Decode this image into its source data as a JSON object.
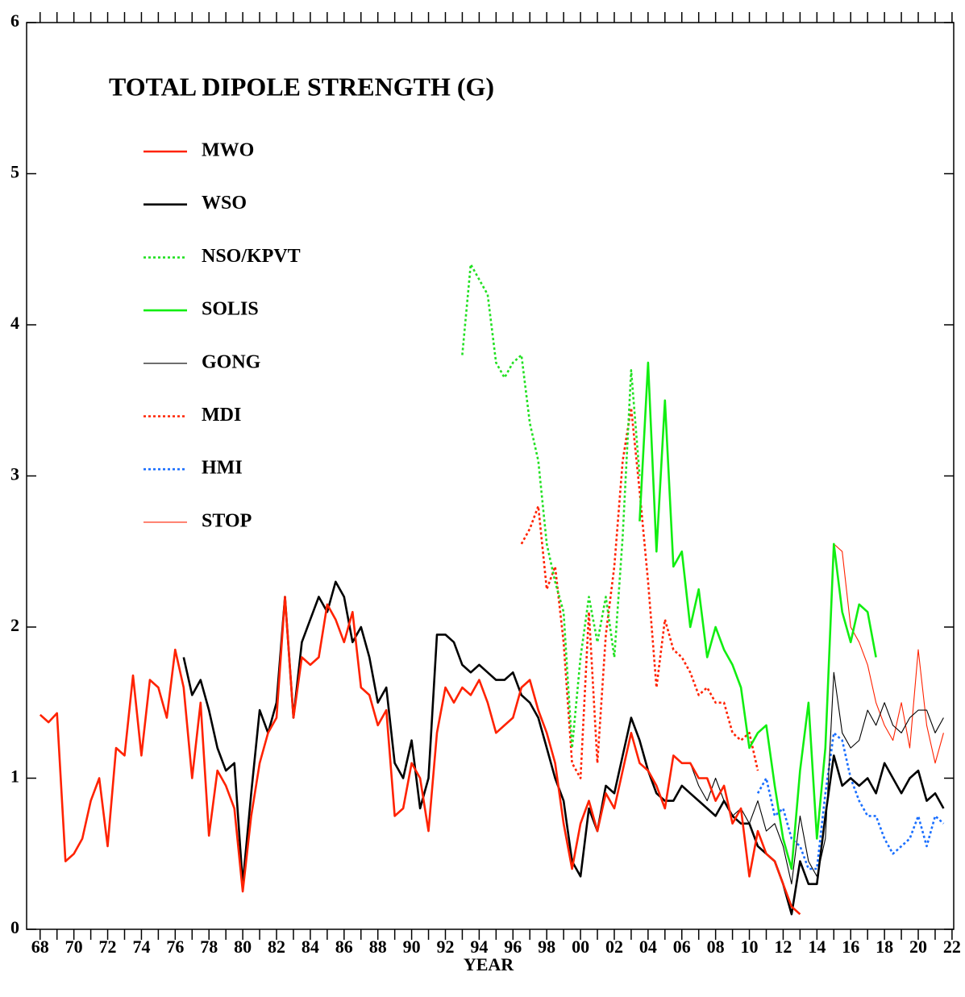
{
  "chart_data": {
    "type": "line",
    "title": "TOTAL DIPOLE STRENGTH (G)",
    "x_label": "YEAR",
    "legend": "upper left",
    "grid": false,
    "xlim": [
      1967.2,
      2022.1
    ],
    "ylim": [
      0,
      6
    ],
    "yticks": [
      0,
      1,
      2,
      3,
      4,
      5,
      6
    ],
    "xticks": [
      {
        "value": 1968,
        "label": "68"
      },
      {
        "value": 1970,
        "label": "70"
      },
      {
        "value": 1972,
        "label": "72"
      },
      {
        "value": 1974,
        "label": "74"
      },
      {
        "value": 1976,
        "label": "76"
      },
      {
        "value": 1978,
        "label": "78"
      },
      {
        "value": 1980,
        "label": "80"
      },
      {
        "value": 1982,
        "label": "82"
      },
      {
        "value": 1984,
        "label": "84"
      },
      {
        "value": 1986,
        "label": "86"
      },
      {
        "value": 1988,
        "label": "88"
      },
      {
        "value": 1990,
        "label": "90"
      },
      {
        "value": 1992,
        "label": "92"
      },
      {
        "value": 1994,
        "label": "94"
      },
      {
        "value": 1996,
        "label": "96"
      },
      {
        "value": 1998,
        "label": "98"
      },
      {
        "value": 2000,
        "label": "00"
      },
      {
        "value": 2002,
        "label": "02"
      },
      {
        "value": 2004,
        "label": "04"
      },
      {
        "value": 2006,
        "label": "06"
      },
      {
        "value": 2008,
        "label": "08"
      },
      {
        "value": 2010,
        "label": "10"
      },
      {
        "value": 2012,
        "label": "12"
      },
      {
        "value": 2014,
        "label": "14"
      },
      {
        "value": 2016,
        "label": "16"
      },
      {
        "value": 2018,
        "label": "18"
      },
      {
        "value": 2020,
        "label": "20"
      },
      {
        "value": 2022,
        "label": "22"
      }
    ],
    "xminor_ticks": [
      1969,
      1971,
      1973,
      1975,
      1977,
      1979,
      1981,
      1983,
      1985,
      1987,
      1989,
      1991,
      1993,
      1995,
      1997,
      1999,
      2001,
      2003,
      2005,
      2007,
      2009,
      2011,
      2013,
      2015,
      2017,
      2019,
      2021
    ],
    "x": [
      1968,
      1968.5,
      1969,
      1969.5,
      1970,
      1970.5,
      1971,
      1971.5,
      1972,
      1972.5,
      1973,
      1973.5,
      1974,
      1974.5,
      1975,
      1975.5,
      1976,
      1976.5,
      1977,
      1977.5,
      1978,
      1978.5,
      1979,
      1979.5,
      1980,
      1980.5,
      1981,
      1981.5,
      1982,
      1982.5,
      1983,
      1983.5,
      1984,
      1984.5,
      1985,
      1985.5,
      1986,
      1986.5,
      1987,
      1987.5,
      1988,
      1988.5,
      1989,
      1989.5,
      1990,
      1990.5,
      1991,
      1991.5,
      1992,
      1992.5,
      1993,
      1993.5,
      1994,
      1994.5,
      1995,
      1995.5,
      1996,
      1996.5,
      1997,
      1997.5,
      1998,
      1998.5,
      1999,
      1999.5,
      2000,
      2000.5,
      2001,
      2001.5,
      2002,
      2002.5,
      2003,
      2003.5,
      2004,
      2004.5,
      2005,
      2005.5,
      2006,
      2006.5,
      2007,
      2007.5,
      2008,
      2008.5,
      2009,
      2009.5,
      2010,
      2010.5,
      2011,
      2011.5,
      2012,
      2012.5,
      2013,
      2013.5,
      2014,
      2014.5,
      2015,
      2015.5,
      2016,
      2016.5,
      2017,
      2017.5,
      2018,
      2018.5,
      2019,
      2019.5,
      2020,
      2020.5,
      2021,
      2021.5
    ],
    "series": [
      {
        "name": "MWO",
        "color": "#ff2200",
        "style": "solid",
        "weight": "thick",
        "values": [
          1.42,
          1.37,
          1.43,
          0.45,
          0.5,
          0.6,
          0.85,
          1.0,
          0.55,
          1.2,
          1.15,
          1.68,
          1.15,
          1.65,
          1.6,
          1.4,
          1.85,
          1.6,
          1.0,
          1.5,
          0.62,
          1.05,
          0.95,
          0.8,
          0.25,
          0.75,
          1.1,
          1.3,
          1.4,
          2.2,
          1.4,
          1.8,
          1.75,
          1.8,
          2.15,
          2.05,
          1.9,
          2.1,
          1.6,
          1.55,
          1.35,
          1.45,
          0.75,
          0.8,
          1.1,
          1.0,
          0.65,
          1.3,
          1.6,
          1.5,
          1.6,
          1.55,
          1.65,
          1.5,
          1.3,
          1.35,
          1.4,
          1.6,
          1.65,
          1.45,
          1.3,
          1.1,
          0.7,
          0.4,
          0.7,
          0.85,
          0.65,
          0.9,
          0.8,
          1.05,
          1.3,
          1.1,
          1.05,
          0.95,
          0.8,
          1.15,
          1.1,
          1.1,
          1.0,
          1.0,
          0.85,
          0.95,
          0.7,
          0.8,
          0.35,
          0.65,
          0.5,
          0.45,
          0.3,
          0.15,
          0.1,
          null,
          null,
          null,
          null,
          null,
          null,
          null,
          null,
          null,
          null,
          null,
          null,
          null,
          null,
          null,
          null,
          null
        ]
      },
      {
        "name": "WSO",
        "color": "#000000",
        "style": "solid",
        "weight": "thick",
        "values": [
          null,
          null,
          null,
          null,
          null,
          null,
          null,
          null,
          null,
          null,
          null,
          null,
          null,
          null,
          null,
          null,
          null,
          1.8,
          1.55,
          1.65,
          1.45,
          1.2,
          1.05,
          1.1,
          0.3,
          0.9,
          1.45,
          1.3,
          1.5,
          2.2,
          1.4,
          1.9,
          2.05,
          2.2,
          2.1,
          2.3,
          2.2,
          1.9,
          2.0,
          1.8,
          1.5,
          1.6,
          1.1,
          1.0,
          1.25,
          0.8,
          1.0,
          1.95,
          1.95,
          1.9,
          1.75,
          1.7,
          1.75,
          1.7,
          1.65,
          1.65,
          1.7,
          1.55,
          1.5,
          1.4,
          1.2,
          1.0,
          0.85,
          0.45,
          0.35,
          0.8,
          0.65,
          0.95,
          0.9,
          1.15,
          1.4,
          1.25,
          1.05,
          0.9,
          0.85,
          0.85,
          0.95,
          0.9,
          0.85,
          0.8,
          0.75,
          0.85,
          0.75,
          0.7,
          0.7,
          0.55,
          0.5,
          0.45,
          0.3,
          0.1,
          0.45,
          0.3,
          0.3,
          0.75,
          1.15,
          0.95,
          1.0,
          0.95,
          1.0,
          0.9,
          1.1,
          1.0,
          0.9,
          1.0,
          1.05,
          0.85,
          0.9,
          0.8
        ]
      },
      {
        "name": "NSO/KPVT",
        "color": "#22e022",
        "style": "dotted",
        "weight": "thick",
        "values": [
          null,
          null,
          null,
          null,
          null,
          null,
          null,
          null,
          null,
          null,
          null,
          null,
          null,
          null,
          null,
          null,
          null,
          null,
          null,
          null,
          null,
          null,
          null,
          null,
          null,
          null,
          null,
          null,
          null,
          null,
          null,
          null,
          null,
          null,
          null,
          null,
          null,
          null,
          null,
          null,
          null,
          null,
          null,
          null,
          null,
          null,
          null,
          null,
          null,
          null,
          3.8,
          4.4,
          4.3,
          4.2,
          3.75,
          3.65,
          3.75,
          3.8,
          3.35,
          3.1,
          2.55,
          2.3,
          2.1,
          1.2,
          1.8,
          2.2,
          1.9,
          2.2,
          1.8,
          2.6,
          3.7,
          3.0,
          null,
          null,
          null,
          null,
          null,
          null,
          null,
          null,
          null,
          null,
          null,
          null,
          null,
          null,
          null,
          null,
          null,
          null,
          null,
          null,
          null,
          null,
          null,
          null,
          null,
          null,
          null,
          null,
          null,
          null,
          null,
          null,
          null,
          null,
          null,
          null
        ]
      },
      {
        "name": "SOLIS",
        "color": "#11ee11",
        "style": "solid",
        "weight": "thick",
        "values": [
          null,
          null,
          null,
          null,
          null,
          null,
          null,
          null,
          null,
          null,
          null,
          null,
          null,
          null,
          null,
          null,
          null,
          null,
          null,
          null,
          null,
          null,
          null,
          null,
          null,
          null,
          null,
          null,
          null,
          null,
          null,
          null,
          null,
          null,
          null,
          null,
          null,
          null,
          null,
          null,
          null,
          null,
          null,
          null,
          null,
          null,
          null,
          null,
          null,
          null,
          null,
          null,
          null,
          null,
          null,
          null,
          null,
          null,
          null,
          null,
          null,
          null,
          null,
          null,
          null,
          null,
          null,
          null,
          null,
          null,
          null,
          2.7,
          3.75,
          2.5,
          3.5,
          2.4,
          2.5,
          2.0,
          2.25,
          1.8,
          2.0,
          1.85,
          1.75,
          1.6,
          1.2,
          1.3,
          1.35,
          0.95,
          0.6,
          0.4,
          1.05,
          1.5,
          0.6,
          1.2,
          2.55,
          2.1,
          1.9,
          2.15,
          2.1,
          1.8,
          null,
          null,
          null,
          null,
          null,
          null,
          null,
          null
        ]
      },
      {
        "name": "GONG",
        "color": "#000000",
        "style": "solid",
        "weight": "thin",
        "values": [
          null,
          null,
          null,
          null,
          null,
          null,
          null,
          null,
          null,
          null,
          null,
          null,
          null,
          null,
          null,
          null,
          null,
          null,
          null,
          null,
          null,
          null,
          null,
          null,
          null,
          null,
          null,
          null,
          null,
          null,
          null,
          null,
          null,
          null,
          null,
          null,
          null,
          null,
          null,
          null,
          null,
          null,
          null,
          null,
          null,
          null,
          null,
          null,
          null,
          null,
          null,
          null,
          null,
          null,
          null,
          null,
          null,
          null,
          null,
          null,
          null,
          null,
          null,
          null,
          null,
          null,
          null,
          null,
          null,
          null,
          null,
          null,
          null,
          null,
          null,
          null,
          null,
          1.1,
          0.95,
          0.85,
          1.0,
          0.85,
          0.75,
          0.8,
          0.7,
          0.85,
          0.65,
          0.7,
          0.55,
          0.3,
          0.75,
          0.45,
          0.35,
          0.6,
          1.7,
          1.3,
          1.2,
          1.25,
          1.45,
          1.35,
          1.5,
          1.35,
          1.3,
          1.4,
          1.45,
          1.45,
          1.3,
          1.4
        ]
      },
      {
        "name": "MDI",
        "color": "#ff2200",
        "style": "dotted",
        "weight": "thick",
        "values": [
          null,
          null,
          null,
          null,
          null,
          null,
          null,
          null,
          null,
          null,
          null,
          null,
          null,
          null,
          null,
          null,
          null,
          null,
          null,
          null,
          null,
          null,
          null,
          null,
          null,
          null,
          null,
          null,
          null,
          null,
          null,
          null,
          null,
          null,
          null,
          null,
          null,
          null,
          null,
          null,
          null,
          null,
          null,
          null,
          null,
          null,
          null,
          null,
          null,
          null,
          null,
          null,
          null,
          null,
          null,
          null,
          null,
          2.55,
          2.65,
          2.8,
          2.25,
          2.4,
          1.9,
          1.1,
          1.0,
          2.1,
          1.1,
          1.95,
          2.4,
          3.1,
          3.45,
          2.9,
          2.3,
          1.6,
          2.05,
          1.85,
          1.8,
          1.7,
          1.55,
          1.6,
          1.5,
          1.5,
          1.3,
          1.25,
          1.3,
          1.05,
          null,
          null,
          null,
          null,
          null,
          null,
          null,
          null,
          null,
          null,
          null,
          null,
          null,
          null,
          null,
          null,
          null,
          null,
          null,
          null,
          null,
          null
        ]
      },
      {
        "name": "HMI",
        "color": "#1a6fff",
        "style": "dotted",
        "weight": "thick",
        "values": [
          null,
          null,
          null,
          null,
          null,
          null,
          null,
          null,
          null,
          null,
          null,
          null,
          null,
          null,
          null,
          null,
          null,
          null,
          null,
          null,
          null,
          null,
          null,
          null,
          null,
          null,
          null,
          null,
          null,
          null,
          null,
          null,
          null,
          null,
          null,
          null,
          null,
          null,
          null,
          null,
          null,
          null,
          null,
          null,
          null,
          null,
          null,
          null,
          null,
          null,
          null,
          null,
          null,
          null,
          null,
          null,
          null,
          null,
          null,
          null,
          null,
          null,
          null,
          null,
          null,
          null,
          null,
          null,
          null,
          null,
          null,
          null,
          null,
          null,
          null,
          null,
          null,
          null,
          null,
          null,
          null,
          null,
          null,
          null,
          null,
          0.9,
          1.0,
          0.75,
          0.8,
          0.6,
          0.55,
          0.4,
          0.4,
          0.9,
          1.3,
          1.25,
          1.0,
          0.85,
          0.75,
          0.75,
          0.6,
          0.5,
          0.55,
          0.6,
          0.75,
          0.55,
          0.75,
          0.7
        ]
      },
      {
        "name": "STOP",
        "color": "#ff2200",
        "style": "solid",
        "weight": "thin",
        "values": [
          null,
          null,
          null,
          null,
          null,
          null,
          null,
          null,
          null,
          null,
          null,
          null,
          null,
          null,
          null,
          null,
          null,
          null,
          null,
          null,
          null,
          null,
          null,
          null,
          null,
          null,
          null,
          null,
          null,
          null,
          null,
          null,
          null,
          null,
          null,
          null,
          null,
          null,
          null,
          null,
          null,
          null,
          null,
          null,
          null,
          null,
          null,
          null,
          null,
          null,
          null,
          null,
          null,
          null,
          null,
          null,
          null,
          null,
          null,
          null,
          null,
          null,
          null,
          null,
          null,
          null,
          null,
          null,
          null,
          null,
          null,
          null,
          null,
          null,
          null,
          null,
          null,
          null,
          null,
          null,
          null,
          null,
          null,
          null,
          null,
          null,
          null,
          null,
          null,
          null,
          null,
          null,
          null,
          null,
          2.55,
          2.5,
          2.0,
          1.9,
          1.75,
          1.5,
          1.35,
          1.25,
          1.5,
          1.2,
          1.85,
          1.35,
          1.1,
          1.3
        ]
      }
    ]
  }
}
